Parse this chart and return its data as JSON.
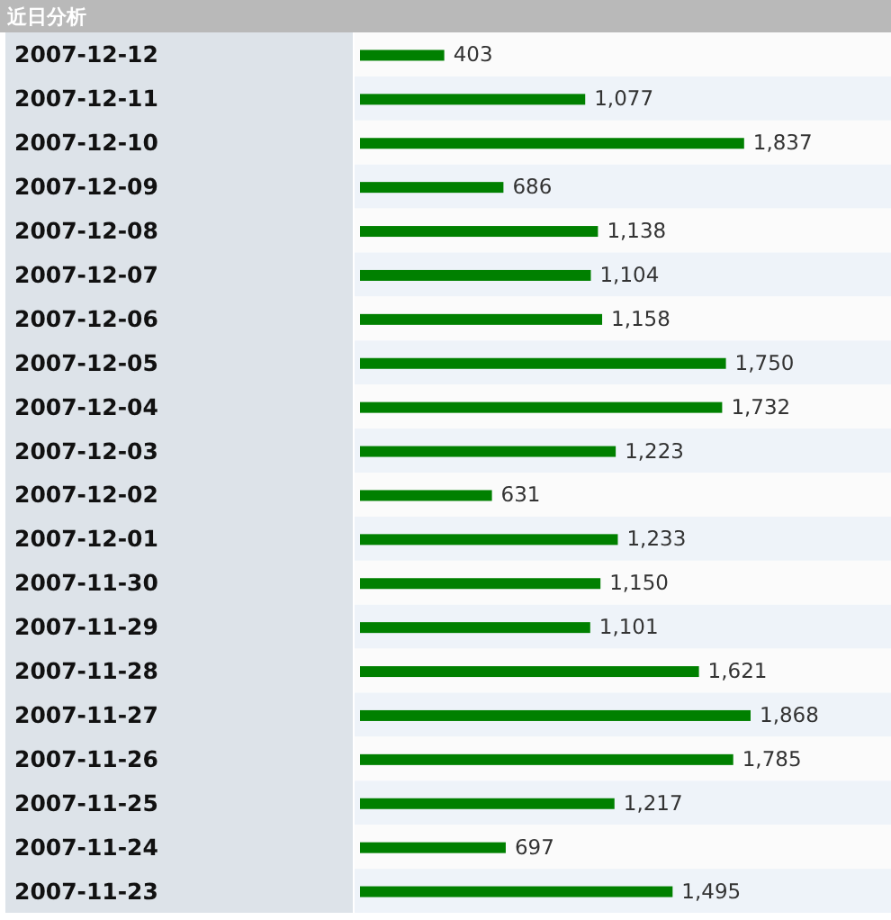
{
  "chart_data": {
    "type": "bar",
    "orientation": "horizontal",
    "title": "近日分析",
    "categories": [
      "2007-12-12",
      "2007-12-11",
      "2007-12-10",
      "2007-12-09",
      "2007-12-08",
      "2007-12-07",
      "2007-12-06",
      "2007-12-05",
      "2007-12-04",
      "2007-12-03",
      "2007-12-02",
      "2007-12-01",
      "2007-11-30",
      "2007-11-29",
      "2007-11-28",
      "2007-11-27",
      "2007-11-26",
      "2007-11-25",
      "2007-11-24",
      "2007-11-23"
    ],
    "values": [
      403,
      1077,
      1837,
      686,
      1138,
      1104,
      1158,
      1750,
      1732,
      1223,
      631,
      1233,
      1150,
      1101,
      1621,
      1868,
      1785,
      1217,
      697,
      1495
    ],
    "value_labels": [
      "403",
      "1,077",
      "1,837",
      "686",
      "1,138",
      "1,104",
      "1,158",
      "1,750",
      "1,732",
      "1,223",
      "631",
      "1,233",
      "1,150",
      "1,101",
      "1,621",
      "1,868",
      "1,785",
      "1,217",
      "697",
      "1,495"
    ],
    "color": "#008000"
  }
}
